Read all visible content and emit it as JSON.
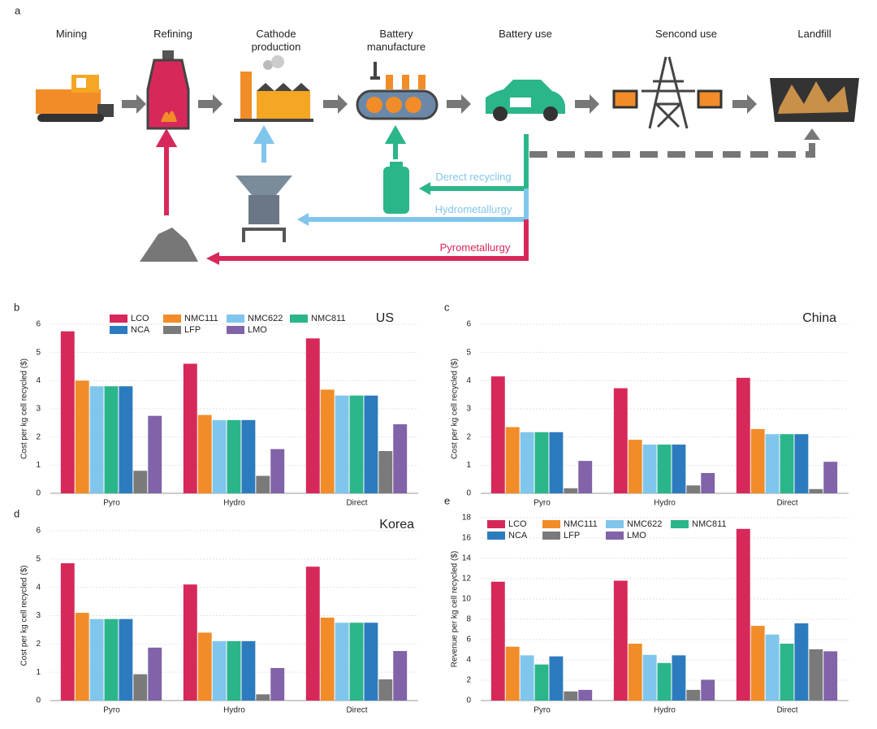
{
  "diagram": {
    "panel": "a",
    "stages": [
      "Mining",
      "Refining",
      "Cathode production",
      "Battery manufacture",
      "Battery use",
      "Sencond use",
      "Landfill"
    ],
    "routes": [
      "Derect recycling",
      "Hydrometallurgy",
      "Pyrometallurgy"
    ]
  },
  "chart_data": [
    {
      "type": "bar",
      "panel": "b",
      "title": "US",
      "ylabel": "Cost per kg cell recycled ($)",
      "categories": [
        "Pyro",
        "Hydro",
        "Direct"
      ],
      "ylim": [
        0,
        6
      ],
      "yticks": [
        0,
        1,
        2,
        3,
        4,
        5,
        6
      ],
      "grid": true,
      "legend": true,
      "series": [
        {
          "name": "LCO",
          "color": "#d7285a",
          "values": [
            5.75,
            4.6,
            5.5
          ]
        },
        {
          "name": "NMC111",
          "color": "#f28c28",
          "values": [
            4.0,
            2.78,
            3.68
          ]
        },
        {
          "name": "NMC622",
          "color": "#80c6ec",
          "values": [
            3.8,
            2.6,
            3.47
          ]
        },
        {
          "name": "NMC811",
          "color": "#2bb58a",
          "values": [
            3.8,
            2.6,
            3.47
          ]
        },
        {
          "name": "NCA",
          "color": "#2c7bbf",
          "values": [
            3.8,
            2.6,
            3.47
          ]
        },
        {
          "name": "LFP",
          "color": "#7a7a7a",
          "values": [
            0.8,
            0.62,
            1.5
          ]
        },
        {
          "name": "LMO",
          "color": "#8063a8",
          "values": [
            2.75,
            1.57,
            2.45
          ]
        }
      ]
    },
    {
      "type": "bar",
      "panel": "c",
      "title": "China",
      "ylabel": "Cost per kg cell recycled ($)",
      "categories": [
        "Pyro",
        "Hydro",
        "Direct"
      ],
      "ylim": [
        0,
        6
      ],
      "yticks": [
        0,
        1,
        2,
        3,
        4,
        5,
        6
      ],
      "grid": true,
      "legend": false,
      "series": [
        {
          "color": "#d7285a",
          "values": [
            4.15,
            3.73,
            4.1
          ]
        },
        {
          "color": "#f28c28",
          "values": [
            2.35,
            1.9,
            2.28
          ]
        },
        {
          "color": "#80c6ec",
          "values": [
            2.17,
            1.73,
            2.1
          ]
        },
        {
          "color": "#2bb58a",
          "values": [
            2.17,
            1.73,
            2.1
          ]
        },
        {
          "color": "#2c7bbf",
          "values": [
            2.17,
            1.73,
            2.1
          ]
        },
        {
          "color": "#7a7a7a",
          "values": [
            0.18,
            0.28,
            0.15
          ]
        },
        {
          "color": "#8063a8",
          "values": [
            1.15,
            0.72,
            1.12
          ]
        }
      ]
    },
    {
      "type": "bar",
      "panel": "d",
      "title": "Korea",
      "ylabel": "Cost per kg cell recycled ($)",
      "categories": [
        "Pyro",
        "Hydro",
        "Direct"
      ],
      "ylim": [
        0,
        6
      ],
      "yticks": [
        0,
        1,
        2,
        3,
        4,
        5,
        6
      ],
      "grid": true,
      "legend": false,
      "series": [
        {
          "color": "#d7285a",
          "values": [
            4.85,
            4.1,
            4.73
          ]
        },
        {
          "color": "#f28c28",
          "values": [
            3.1,
            2.4,
            2.93
          ]
        },
        {
          "color": "#80c6ec",
          "values": [
            2.88,
            2.1,
            2.75
          ]
        },
        {
          "color": "#2bb58a",
          "values": [
            2.88,
            2.1,
            2.75
          ]
        },
        {
          "color": "#2c7bbf",
          "values": [
            2.88,
            2.1,
            2.75
          ]
        },
        {
          "color": "#7a7a7a",
          "values": [
            0.93,
            0.22,
            0.75
          ]
        },
        {
          "color": "#8063a8",
          "values": [
            1.87,
            1.15,
            1.75
          ]
        }
      ]
    },
    {
      "type": "bar",
      "panel": "e",
      "ylabel": "Revenue per kg cell recycled ($)",
      "categories": [
        "Pyro",
        "Hydro",
        "Direct"
      ],
      "ylim": [
        0,
        18
      ],
      "yticks": [
        0,
        2,
        4,
        6,
        8,
        10,
        12,
        14,
        16,
        18
      ],
      "grid": true,
      "legend": true,
      "series": [
        {
          "name": "LCO",
          "color": "#d7285a",
          "values": [
            11.7,
            11.8,
            16.9
          ]
        },
        {
          "name": "NMC111",
          "color": "#f28c28",
          "values": [
            5.3,
            5.6,
            7.35
          ]
        },
        {
          "name": "NMC622",
          "color": "#80c6ec",
          "values": [
            4.45,
            4.5,
            6.5
          ]
        },
        {
          "name": "NMC811",
          "color": "#2bb58a",
          "values": [
            3.55,
            3.7,
            5.6
          ]
        },
        {
          "name": "NCA",
          "color": "#2c7bbf",
          "values": [
            4.35,
            4.45,
            7.6
          ]
        },
        {
          "name": "LFP",
          "color": "#7a7a7a",
          "values": [
            0.9,
            1.05,
            5.05
          ]
        },
        {
          "name": "LMO",
          "color": "#8063a8",
          "values": [
            1.05,
            2.05,
            4.85
          ]
        }
      ]
    }
  ]
}
